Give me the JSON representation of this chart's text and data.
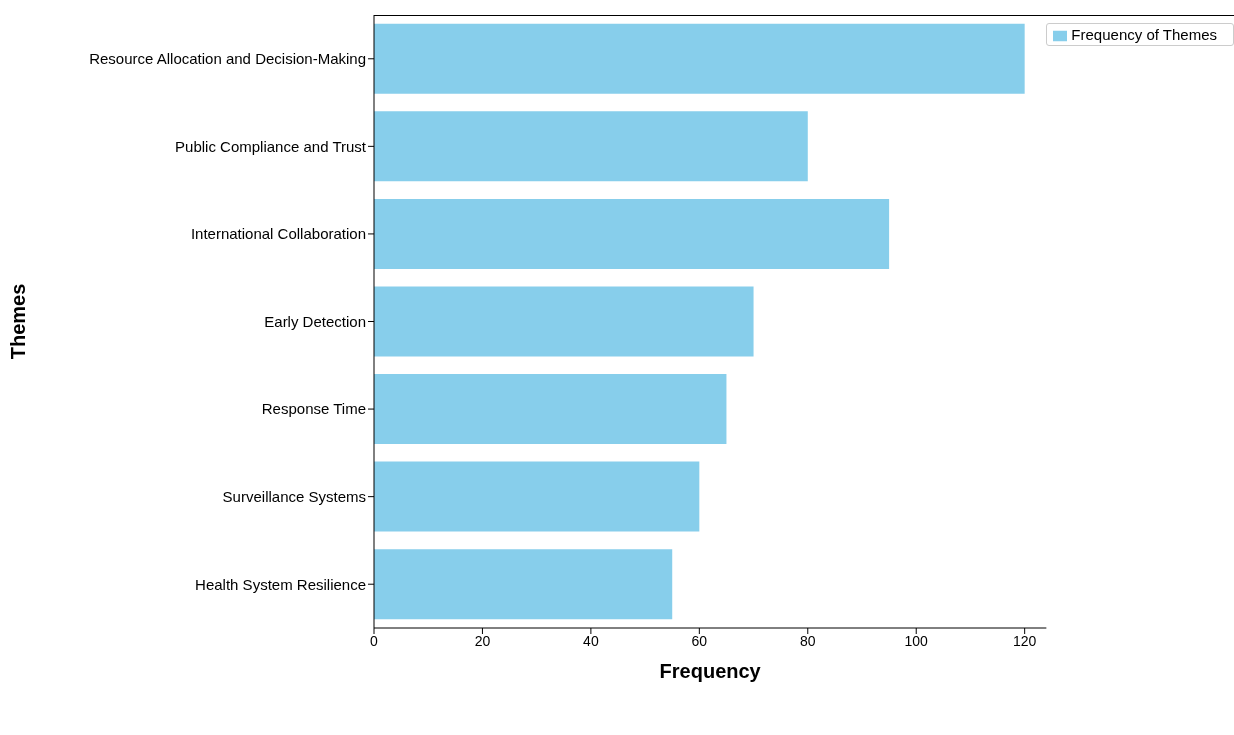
{
  "chart_data": {
    "type": "bar",
    "orientation": "horizontal",
    "xlabel": "Frequency",
    "ylabel": "Themes",
    "categories": [
      "Resource Allocation and Decision-Making",
      "Public Compliance and Trust",
      "International Collaboration",
      "Early Detection",
      "Response Time",
      "Surveillance Systems",
      "Health System Resilience"
    ],
    "series": [
      {
        "name": "Frequency of Themes",
        "color": "#87ceeb",
        "values": [
          120,
          80,
          95,
          70,
          65,
          60,
          55
        ]
      }
    ],
    "xlim": [
      0,
      124
    ],
    "xticks": [
      0,
      20,
      40,
      60,
      80,
      100,
      120
    ],
    "grid": false,
    "legend": "top right"
  }
}
